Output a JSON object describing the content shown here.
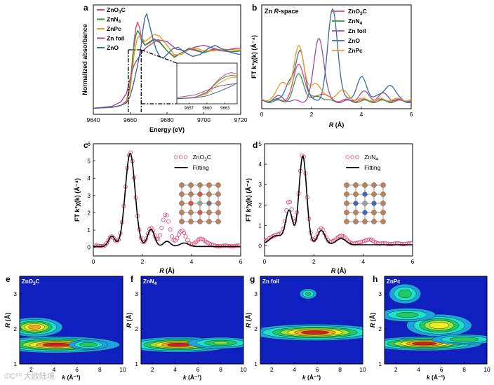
{
  "figure": {
    "watermark": "©C⁰⁰ 大欧陆境"
  },
  "chart_data": [
    {
      "id": "a",
      "panel_label": "a",
      "type": "line",
      "xlabel": "Energy (eV)",
      "ylabel": "Normalized absorbance",
      "xlim": [
        9640,
        9720
      ],
      "xticks": [
        "9640",
        "9660",
        "9680",
        "9700",
        "9720"
      ],
      "legend_position": "top-left",
      "series": [
        {
          "name": "ZnO3C",
          "label_main": "ZnO",
          "label_sub": "3",
          "label_tail": "C",
          "color": "#e0457b",
          "x": [
            9640,
            9650,
            9655,
            9658,
            9660,
            9661,
            9662,
            9663,
            9664,
            9665,
            9666,
            9668,
            9670,
            9673,
            9676,
            9680,
            9684,
            9688,
            9692,
            9696,
            9700,
            9705,
            9710,
            9715,
            9720
          ],
          "y": [
            0.02,
            0.03,
            0.05,
            0.1,
            0.28,
            0.5,
            0.72,
            0.88,
            0.95,
            0.9,
            0.8,
            0.7,
            0.72,
            0.76,
            0.73,
            0.64,
            0.58,
            0.62,
            0.66,
            0.64,
            0.62,
            0.66,
            0.64,
            0.63,
            0.64
          ]
        },
        {
          "name": "ZnN4",
          "label_main": "ZnN",
          "label_sub": "4",
          "label_tail": "",
          "color": "#2f9a3a",
          "x": [
            9640,
            9650,
            9655,
            9658,
            9660,
            9661,
            9662,
            9663,
            9664,
            9665,
            9666,
            9668,
            9670,
            9673,
            9676,
            9680,
            9684,
            9688,
            9692,
            9696,
            9700,
            9705,
            9710,
            9715,
            9720
          ],
          "y": [
            0.02,
            0.03,
            0.05,
            0.09,
            0.26,
            0.48,
            0.68,
            0.8,
            0.86,
            0.83,
            0.76,
            0.7,
            0.73,
            0.77,
            0.74,
            0.64,
            0.57,
            0.62,
            0.67,
            0.65,
            0.62,
            0.65,
            0.64,
            0.63,
            0.64
          ]
        },
        {
          "name": "ZnPc",
          "label_main": "ZnPc",
          "label_sub": "",
          "label_tail": "",
          "color": "#f0962a",
          "x": [
            9640,
            9650,
            9655,
            9658,
            9660,
            9661,
            9662,
            9663,
            9664,
            9665,
            9666,
            9668,
            9670,
            9673,
            9676,
            9680,
            9684,
            9688,
            9692,
            9696,
            9700,
            9705,
            9710,
            9715,
            9720
          ],
          "y": [
            0.02,
            0.03,
            0.05,
            0.09,
            0.22,
            0.4,
            0.58,
            0.7,
            0.78,
            0.8,
            0.78,
            0.74,
            0.77,
            0.82,
            0.8,
            0.7,
            0.6,
            0.6,
            0.66,
            0.67,
            0.64,
            0.64,
            0.66,
            0.65,
            0.65
          ]
        },
        {
          "name": "Zn foil",
          "label_main": "Zn foil",
          "label_sub": "",
          "label_tail": "",
          "color": "#9b4f9b",
          "x": [
            9640,
            9650,
            9655,
            9658,
            9659,
            9660,
            9661,
            9662,
            9663,
            9665,
            9667,
            9669,
            9672,
            9675,
            9680,
            9685,
            9690,
            9695,
            9700,
            9705,
            9710,
            9715,
            9720
          ],
          "y": [
            0.02,
            0.04,
            0.09,
            0.18,
            0.26,
            0.34,
            0.42,
            0.48,
            0.52,
            0.58,
            0.64,
            0.68,
            0.72,
            0.76,
            0.74,
            0.66,
            0.64,
            0.68,
            0.7,
            0.67,
            0.64,
            0.66,
            0.67
          ]
        },
        {
          "name": "ZnO",
          "label_main": "ZnO",
          "label_sub": "",
          "label_tail": "",
          "color": "#3d6b9c",
          "x": [
            9640,
            9650,
            9655,
            9658,
            9660,
            9662,
            9664,
            9666,
            9667,
            9668,
            9669,
            9670,
            9672,
            9674,
            9676,
            9678,
            9680,
            9683,
            9686,
            9690,
            9694,
            9698,
            9702,
            9706,
            9710,
            9715,
            9720
          ],
          "y": [
            0.02,
            0.03,
            0.05,
            0.08,
            0.15,
            0.3,
            0.48,
            0.7,
            0.88,
            1.0,
            1.04,
            0.96,
            0.8,
            0.66,
            0.58,
            0.56,
            0.6,
            0.66,
            0.68,
            0.62,
            0.58,
            0.6,
            0.66,
            0.7,
            0.66,
            0.62,
            0.6
          ]
        }
      ],
      "inset": {
        "xlim": [
          9655,
          9665
        ],
        "xticks": [
          "9657",
          "9660",
          "9663"
        ]
      }
    },
    {
      "id": "b",
      "panel_label": "b",
      "type": "line",
      "title_plain": "Zn ",
      "title_italic": "R",
      "title_tail": "-space",
      "xlabel_italic": "R",
      "xlabel_tail": " (Å)",
      "ylabel": "FT k³χ(k) (Å⁻⁴)",
      "xlim": [
        0,
        6
      ],
      "xticks": [
        "0",
        "2",
        "4",
        "6"
      ],
      "legend_position": "top-right",
      "series": [
        {
          "name": "ZnO3C",
          "label_main": "ZnO",
          "label_sub": "3",
          "label_tail": "C",
          "color": "#e0457b",
          "peaks": [
            [
              1.5,
              0.4,
              0.3
            ],
            [
              2.4,
              0.08,
              0.3
            ]
          ],
          "base": 0.06
        },
        {
          "name": "ZnN4",
          "label_main": "ZnN",
          "label_sub": "4",
          "label_tail": "",
          "color": "#2f9a3a",
          "peaks": [
            [
              1.5,
              0.3,
              0.28
            ],
            [
              2.3,
              0.06,
              0.25
            ]
          ],
          "base": 0.05
        },
        {
          "name": "Zn foil",
          "label_main": "Zn foil",
          "label_sub": "",
          "label_tail": "",
          "color": "#9b4f9b",
          "peaks": [
            [
              0.7,
              0.05,
              0.3
            ],
            [
              2.3,
              0.7,
              0.28
            ],
            [
              4.1,
              0.1,
              0.3
            ],
            [
              4.9,
              0.08,
              0.3
            ]
          ],
          "base": 0.05
        },
        {
          "name": "ZnO",
          "label_main": "ZnO",
          "label_sub": "",
          "label_tail": "",
          "color": "#3d6b9c",
          "peaks": [
            [
              1.1,
              0.2,
              0.25
            ],
            [
              1.55,
              0.55,
              0.25
            ],
            [
              2.85,
              1.0,
              0.28
            ],
            [
              4.0,
              0.25,
              0.28
            ],
            [
              4.6,
              0.05,
              0.25
            ],
            [
              5.15,
              0.18,
              0.28
            ]
          ],
          "base": 0.06
        },
        {
          "name": "ZnPc",
          "label_main": "ZnPc",
          "label_sub": "",
          "label_tail": "",
          "color": "#f0962a",
          "peaks": [
            [
              0.85,
              0.2,
              0.28
            ],
            [
              1.5,
              0.6,
              0.28
            ],
            [
              2.2,
              0.18,
              0.3
            ],
            [
              3.2,
              0.1,
              0.3
            ]
          ],
          "base": 0.07
        }
      ]
    },
    {
      "id": "c",
      "panel_label": "c",
      "type": "scatter",
      "xlabel_italic": "R",
      "xlabel_tail": " (Å)",
      "ylabel": "FT k²χ(k) (Å⁻⁴)",
      "xlim": [
        0,
        6
      ],
      "ylim": [
        -0.5,
        6
      ],
      "xticks": [
        "0",
        "2",
        "4",
        "6"
      ],
      "yticks": [
        "0",
        "1",
        "2",
        "3",
        "4",
        "5",
        "6"
      ],
      "legend_position": "top-right",
      "legend": [
        {
          "label_main": "ZnO",
          "label_sub": "3",
          "label_tail": "C",
          "kind": "circle",
          "color": "#e0457b"
        },
        {
          "label_main": "Fitting",
          "label_sub": "",
          "label_tail": "",
          "kind": "line",
          "color": "#000000"
        }
      ],
      "data_series": {
        "name": "ZnO3C",
        "color": "#e0457b",
        "peaks": [
          [
            0.75,
            0.55,
            0.18
          ],
          [
            1.5,
            5.45,
            0.28
          ],
          [
            2.35,
            1.05,
            0.2
          ],
          [
            2.95,
            1.85,
            0.22
          ],
          [
            3.6,
            0.9,
            0.22
          ],
          [
            4.4,
            0.4,
            0.3
          ]
        ],
        "base": 0.08
      },
      "fit_series": {
        "name": "Fitting",
        "color": "#000000",
        "peaks": [
          [
            0.75,
            0.6,
            0.18
          ],
          [
            1.5,
            5.4,
            0.28
          ],
          [
            2.35,
            1.0,
            0.2
          ],
          [
            3.0,
            0.3,
            0.2
          ],
          [
            3.7,
            0.2,
            0.25
          ]
        ],
        "base": 0.05
      }
    },
    {
      "id": "d",
      "panel_label": "d",
      "type": "scatter",
      "xlabel_italic": "R",
      "xlabel_tail": " (Å)",
      "ylabel": "FT k²χ(k) (Å⁻⁴)",
      "xlim": [
        0,
        6
      ],
      "ylim": [
        -0.5,
        5
      ],
      "xticks": [
        "0",
        "2",
        "4",
        "6"
      ],
      "yticks": [
        "0",
        "1",
        "2",
        "3",
        "4",
        "5"
      ],
      "legend_position": "top-right",
      "legend": [
        {
          "label_main": "ZnN",
          "label_sub": "4",
          "label_tail": "",
          "kind": "circle",
          "color": "#e0457b"
        },
        {
          "label_main": "Fitting",
          "label_sub": "",
          "label_tail": "",
          "kind": "line",
          "color": "#000000"
        }
      ],
      "data_series": {
        "name": "ZnN4",
        "color": "#e0457b",
        "peaks": [
          [
            0.5,
            0.45,
            0.4
          ],
          [
            1.0,
            2.0,
            0.2
          ],
          [
            1.55,
            4.4,
            0.22
          ],
          [
            2.3,
            0.75,
            0.22
          ],
          [
            3.1,
            0.4,
            0.28
          ],
          [
            4.2,
            0.2,
            0.3
          ]
        ],
        "base": 0.1
      },
      "fit_series": {
        "name": "Fitting",
        "color": "#000000",
        "peaks": [
          [
            0.5,
            0.45,
            0.4
          ],
          [
            1.0,
            1.6,
            0.2
          ],
          [
            1.55,
            4.35,
            0.22
          ],
          [
            2.3,
            0.7,
            0.22
          ],
          [
            3.1,
            0.3,
            0.28
          ]
        ],
        "base": 0.05
      }
    },
    {
      "id": "e",
      "panel_label": "e",
      "type": "heatmap",
      "title": "ZnO3C",
      "title_main": "ZnO",
      "title_sub": "3",
      "title_tail": "C",
      "xlabel_italic": "k",
      "xlabel_tail": " (Å⁻¹)",
      "ylabel_italic": "R",
      "ylabel_tail": " (Å)",
      "xlim": [
        1,
        10
      ],
      "ylim": [
        1,
        3.5
      ],
      "xticks": [
        "2",
        "4",
        "6",
        "8",
        "10"
      ],
      "yticks": [
        "1",
        "2",
        "3"
      ],
      "blobs": [
        [
          2.3,
          2.05,
          1.5,
          0.17,
          0.85
        ],
        [
          4.2,
          1.55,
          3.3,
          0.14,
          1.0
        ],
        [
          7.0,
          1.55,
          1.2,
          0.1,
          0.45
        ]
      ]
    },
    {
      "id": "f",
      "panel_label": "f",
      "type": "heatmap",
      "title": "ZnN4",
      "title_main": "ZnN",
      "title_sub": "4",
      "title_tail": "",
      "xlabel_italic": "k",
      "xlabel_tail": " (Å⁻¹)",
      "ylabel_italic": "R",
      "ylabel_tail": " (Å)",
      "xlim": [
        1,
        10
      ],
      "ylim": [
        1,
        3.5
      ],
      "xticks": [
        "2",
        "4",
        "6",
        "8",
        "10"
      ],
      "yticks": [
        "1",
        "2",
        "3"
      ],
      "blobs": [
        [
          4.3,
          1.55,
          2.8,
          0.13,
          1.0
        ],
        [
          8.0,
          1.6,
          2.0,
          0.11,
          0.5
        ]
      ]
    },
    {
      "id": "g",
      "panel_label": "g",
      "type": "heatmap",
      "title": "Zn foil",
      "title_main": "Zn foil",
      "title_sub": "",
      "title_tail": "",
      "xlabel_italic": "k",
      "xlabel_tail": " (Å⁻¹)",
      "ylabel_italic": "R",
      "ylabel_tail": " (Å)",
      "xlim": [
        1,
        10
      ],
      "ylim": [
        1,
        3.5
      ],
      "xticks": [
        "2",
        "4",
        "6",
        "8",
        "10"
      ],
      "yticks": [
        "1",
        "2",
        "3"
      ],
      "blobs": [
        [
          5.8,
          1.9,
          3.4,
          0.14,
          1.0
        ],
        [
          5.2,
          3.0,
          0.55,
          0.11,
          0.36
        ]
      ]
    },
    {
      "id": "h",
      "panel_label": "h",
      "type": "heatmap",
      "title": "ZnPc",
      "title_main": "ZnPc",
      "title_sub": "",
      "title_tail": "",
      "xlabel_italic": "k",
      "xlabel_tail": " (Å⁻¹)",
      "ylabel_italic": "R",
      "ylabel_tail": " (Å)",
      "xlim": [
        1,
        10
      ],
      "ylim": [
        1,
        3.5
      ],
      "xticks": [
        "2",
        "4",
        "6",
        "8",
        "10"
      ],
      "yticks": [
        "1",
        "2",
        "3"
      ],
      "blobs": [
        [
          4.5,
          1.58,
          3.0,
          0.12,
          1.0
        ],
        [
          5.8,
          2.1,
          1.8,
          0.2,
          0.75
        ],
        [
          3.0,
          2.4,
          1.8,
          0.14,
          0.4
        ],
        [
          2.8,
          3.0,
          1.0,
          0.2,
          0.42
        ],
        [
          8.0,
          1.7,
          2.0,
          0.1,
          0.45
        ]
      ]
    }
  ]
}
